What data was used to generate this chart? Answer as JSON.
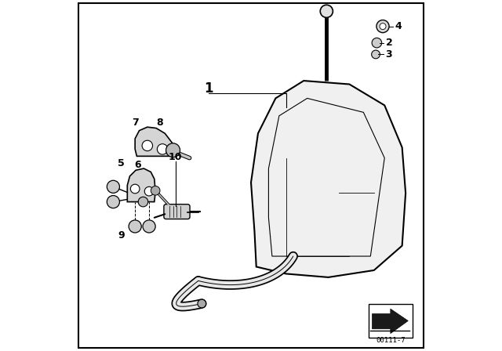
{
  "background_color": "#ffffff",
  "border_color": "#000000",
  "line_color": "#000000",
  "text_color": "#000000",
  "diagram_id": "00111-7"
}
